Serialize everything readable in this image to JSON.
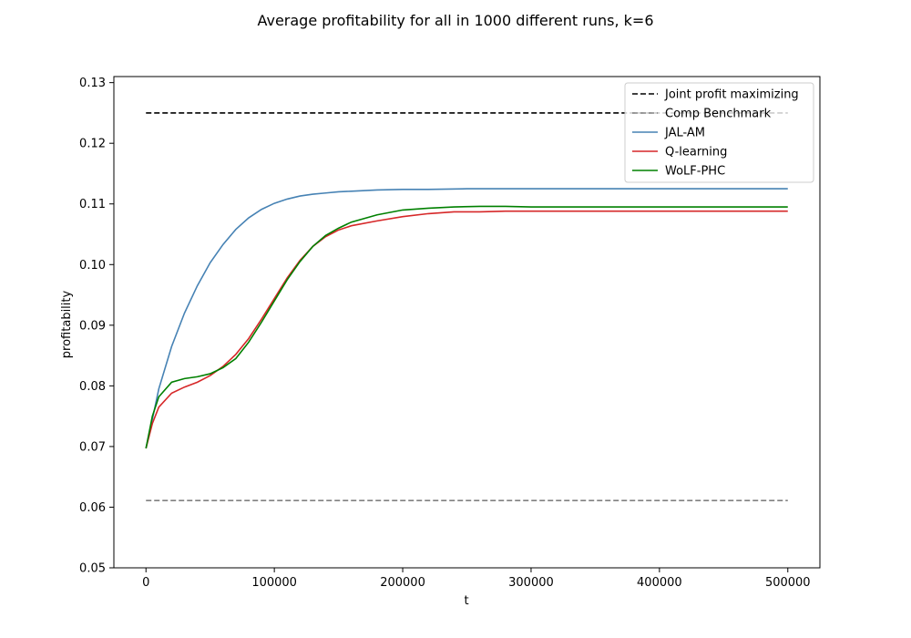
{
  "chart_data": {
    "type": "line",
    "title": "Average profitability for all in 1000 different runs, k=6",
    "xlabel": "t",
    "ylabel": "profitability",
    "xlim": [
      -25000,
      525000
    ],
    "ylim": [
      0.05,
      0.131
    ],
    "xticks": [
      0,
      100000,
      200000,
      300000,
      400000,
      500000
    ],
    "xtick_labels": [
      "0",
      "100000",
      "200000",
      "300000",
      "400000",
      "500000"
    ],
    "yticks": [
      0.05,
      0.06,
      0.07,
      0.08,
      0.09,
      0.1,
      0.11,
      0.12,
      0.13
    ],
    "ytick_labels": [
      "0.05",
      "0.06",
      "0.07",
      "0.08",
      "0.09",
      "0.10",
      "0.11",
      "0.12",
      "0.13"
    ],
    "grid": false,
    "legend_position": "top-right",
    "series": [
      {
        "name": "Joint profit maximizing",
        "color": "#000000",
        "dashed": true,
        "x": [
          0,
          500000
        ],
        "y": [
          0.125,
          0.125
        ]
      },
      {
        "name": "Comp Benchmark",
        "color": "#808080",
        "dashed": true,
        "x": [
          0,
          500000
        ],
        "y": [
          0.0611,
          0.0611
        ]
      },
      {
        "name": "JAL-AM",
        "color": "#4682b4",
        "dashed": false,
        "x": [
          0,
          5000,
          10000,
          20000,
          30000,
          40000,
          50000,
          60000,
          70000,
          80000,
          90000,
          100000,
          110000,
          120000,
          130000,
          140000,
          150000,
          160000,
          180000,
          200000,
          220000,
          250000,
          300000,
          350000,
          400000,
          450000,
          500000
        ],
        "y": [
          0.0697,
          0.0745,
          0.0795,
          0.0865,
          0.092,
          0.0965,
          0.1003,
          0.1033,
          0.1058,
          0.1077,
          0.1091,
          0.1101,
          0.1108,
          0.1113,
          0.1116,
          0.1118,
          0.112,
          0.1121,
          0.1123,
          0.1124,
          0.1124,
          0.1125,
          0.1125,
          0.1125,
          0.1125,
          0.1125,
          0.1125
        ]
      },
      {
        "name": "Q-learning",
        "color": "#d62728",
        "dashed": false,
        "x": [
          0,
          5000,
          10000,
          20000,
          30000,
          40000,
          50000,
          60000,
          70000,
          80000,
          90000,
          100000,
          110000,
          120000,
          130000,
          140000,
          150000,
          160000,
          180000,
          200000,
          220000,
          240000,
          260000,
          280000,
          300000,
          350000,
          400000,
          450000,
          500000
        ],
        "y": [
          0.0697,
          0.0738,
          0.0765,
          0.0788,
          0.0798,
          0.0806,
          0.0817,
          0.0832,
          0.0852,
          0.0878,
          0.091,
          0.0944,
          0.0978,
          0.1007,
          0.103,
          0.1046,
          0.1057,
          0.1064,
          0.1072,
          0.1079,
          0.1084,
          0.1087,
          0.1087,
          0.1088,
          0.1088,
          0.1088,
          0.1088,
          0.1088,
          0.1088
        ]
      },
      {
        "name": "WoLF-PHC",
        "color": "#008000",
        "dashed": false,
        "x": [
          0,
          5000,
          10000,
          20000,
          30000,
          40000,
          50000,
          60000,
          70000,
          80000,
          90000,
          100000,
          110000,
          120000,
          130000,
          140000,
          150000,
          160000,
          180000,
          200000,
          220000,
          240000,
          260000,
          280000,
          300000,
          350000,
          400000,
          450000,
          500000
        ],
        "y": [
          0.0697,
          0.075,
          0.0782,
          0.0806,
          0.0812,
          0.0815,
          0.082,
          0.083,
          0.0845,
          0.0872,
          0.0905,
          0.094,
          0.0975,
          0.1005,
          0.103,
          0.1048,
          0.106,
          0.107,
          0.1082,
          0.109,
          0.1093,
          0.1095,
          0.1096,
          0.1096,
          0.1095,
          0.1095,
          0.1095,
          0.1095,
          0.1095
        ]
      }
    ]
  }
}
